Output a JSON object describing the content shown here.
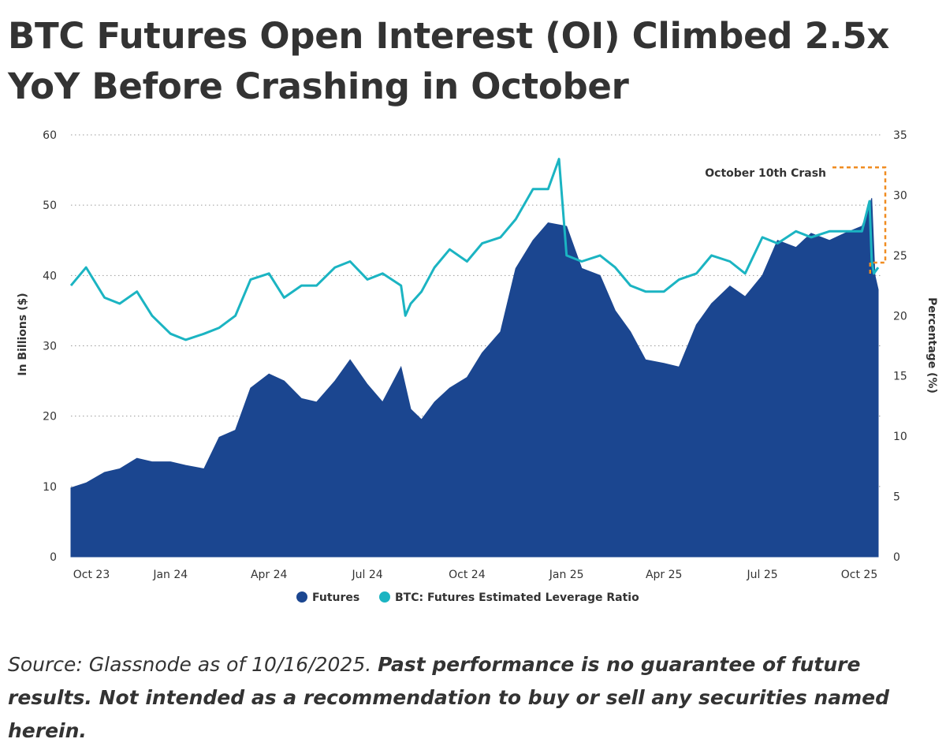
{
  "title": "BTC Futures Open Interest (OI) Climbed 2.5x YoY Before Crashing in October",
  "source": {
    "plain": "Source: Glassnode as of 10/16/2025. ",
    "bold": "Past performance is no guarantee of future results. Not intended as a recommendation to buy or sell any securities named herein."
  },
  "chart_data": {
    "type": "area",
    "x_tick_labels": [
      "Oct 23",
      "Jan 24",
      "Apr 24",
      "Jul 24",
      "Oct 24",
      "Jan 25",
      "Apr 25",
      "Jul 25",
      "Oct 25"
    ],
    "x_ticks": [
      "2023-10-01",
      "2024-01-01",
      "2024-04-01",
      "2024-07-01",
      "2024-10-01",
      "2025-01-01",
      "2025-04-01",
      "2025-07-01",
      "2025-10-01"
    ],
    "x_range": [
      "2023-10-01",
      "2025-10-16"
    ],
    "ylabel": "In Billions ($)",
    "y2label": "Percentage (%)",
    "ylim": [
      0,
      60
    ],
    "y2lim": [
      0,
      35
    ],
    "y_ticks": [
      0,
      10,
      20,
      30,
      40,
      50,
      60
    ],
    "y2_ticks": [
      0,
      5,
      10,
      15,
      20,
      25,
      30,
      35
    ],
    "grid": "horizontal dotted",
    "legend_position": "bottom",
    "series": [
      {
        "name": "Futures",
        "axis": "left",
        "kind": "area",
        "color": "#1b4690",
        "x": [
          "2023-10-01",
          "2023-10-15",
          "2023-11-01",
          "2023-11-15",
          "2023-12-01",
          "2023-12-15",
          "2024-01-01",
          "2024-01-15",
          "2024-02-01",
          "2024-02-15",
          "2024-03-01",
          "2024-03-15",
          "2024-04-01",
          "2024-04-15",
          "2024-05-01",
          "2024-05-15",
          "2024-06-01",
          "2024-06-15",
          "2024-07-01",
          "2024-07-15",
          "2024-08-01",
          "2024-08-10",
          "2024-08-20",
          "2024-09-01",
          "2024-09-15",
          "2024-10-01",
          "2024-10-15",
          "2024-11-01",
          "2024-11-15",
          "2024-12-01",
          "2024-12-15",
          "2025-01-01",
          "2025-01-15",
          "2025-02-01",
          "2025-02-15",
          "2025-03-01",
          "2025-03-15",
          "2025-04-01",
          "2025-04-15",
          "2025-05-01",
          "2025-05-15",
          "2025-06-01",
          "2025-06-15",
          "2025-07-01",
          "2025-07-15",
          "2025-08-01",
          "2025-08-15",
          "2025-09-01",
          "2025-09-15",
          "2025-10-01",
          "2025-10-06",
          "2025-10-10",
          "2025-10-13",
          "2025-10-16"
        ],
        "values": [
          9.8,
          10.5,
          12,
          12.5,
          14,
          13.5,
          13.5,
          13,
          12.5,
          17,
          18,
          24,
          26,
          25,
          22.5,
          22,
          25,
          28,
          24.5,
          22,
          27,
          21,
          19.5,
          22,
          24,
          25.5,
          29,
          32,
          41,
          45,
          47.5,
          47,
          41,
          40,
          35,
          32,
          28,
          27.5,
          27,
          33,
          36,
          38.5,
          37,
          40,
          45,
          44,
          46,
          45,
          46,
          47,
          49,
          51,
          40,
          38
        ]
      },
      {
        "name": "BTC: Futures Estimated Leverage Ratio",
        "axis": "right",
        "kind": "line",
        "color": "#1bb4c2",
        "x": [
          "2023-10-01",
          "2023-10-15",
          "2023-11-01",
          "2023-11-15",
          "2023-12-01",
          "2023-12-15",
          "2024-01-01",
          "2024-01-15",
          "2024-02-01",
          "2024-02-15",
          "2024-03-01",
          "2024-03-15",
          "2024-04-01",
          "2024-04-15",
          "2024-05-01",
          "2024-05-15",
          "2024-06-01",
          "2024-06-15",
          "2024-07-01",
          "2024-07-15",
          "2024-08-01",
          "2024-08-05",
          "2024-08-10",
          "2024-08-20",
          "2024-09-01",
          "2024-09-15",
          "2024-10-01",
          "2024-10-15",
          "2024-11-01",
          "2024-11-15",
          "2024-12-01",
          "2024-12-15",
          "2024-12-25",
          "2025-01-01",
          "2025-01-15",
          "2025-02-01",
          "2025-02-15",
          "2025-03-01",
          "2025-03-15",
          "2025-04-01",
          "2025-04-15",
          "2025-05-01",
          "2025-05-15",
          "2025-06-01",
          "2025-06-15",
          "2025-07-01",
          "2025-07-15",
          "2025-08-01",
          "2025-08-15",
          "2025-09-01",
          "2025-09-15",
          "2025-10-01",
          "2025-10-08",
          "2025-10-10",
          "2025-10-12",
          "2025-10-16"
        ],
        "values": [
          22.5,
          24,
          21.5,
          21,
          22,
          20,
          18.5,
          18,
          18.5,
          19,
          20,
          23,
          23.5,
          21.5,
          22.5,
          22.5,
          24,
          24.5,
          23,
          23.5,
          22.5,
          20,
          21,
          22,
          24,
          25.5,
          24.5,
          26,
          26.5,
          28,
          30.5,
          30.5,
          33,
          25,
          24.5,
          25,
          24,
          22.5,
          22,
          22,
          23,
          23.5,
          25,
          24.5,
          23.5,
          26.5,
          26,
          27,
          26.5,
          27,
          27,
          27,
          29.5,
          24.5,
          23.5,
          24
        ]
      }
    ],
    "annotations": [
      {
        "text": "October 10th Crash",
        "x": "2025-10-10"
      }
    ]
  }
}
